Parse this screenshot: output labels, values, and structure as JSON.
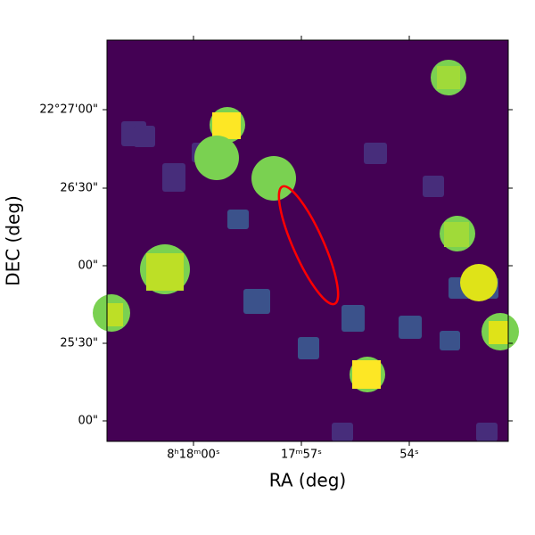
{
  "chart_data": {
    "type": "image",
    "xlabel": "RA (deg)",
    "ylabel": "DEC (deg)",
    "xtick_labels": [
      "8ʰ18ᵐ00ˢ",
      "17ᵐ57ˢ",
      "54ˢ"
    ],
    "ytick_labels": [
      "22°27'00\"",
      "26'30\"",
      "00\"",
      "25'30\"",
      "00\""
    ]
  }
}
